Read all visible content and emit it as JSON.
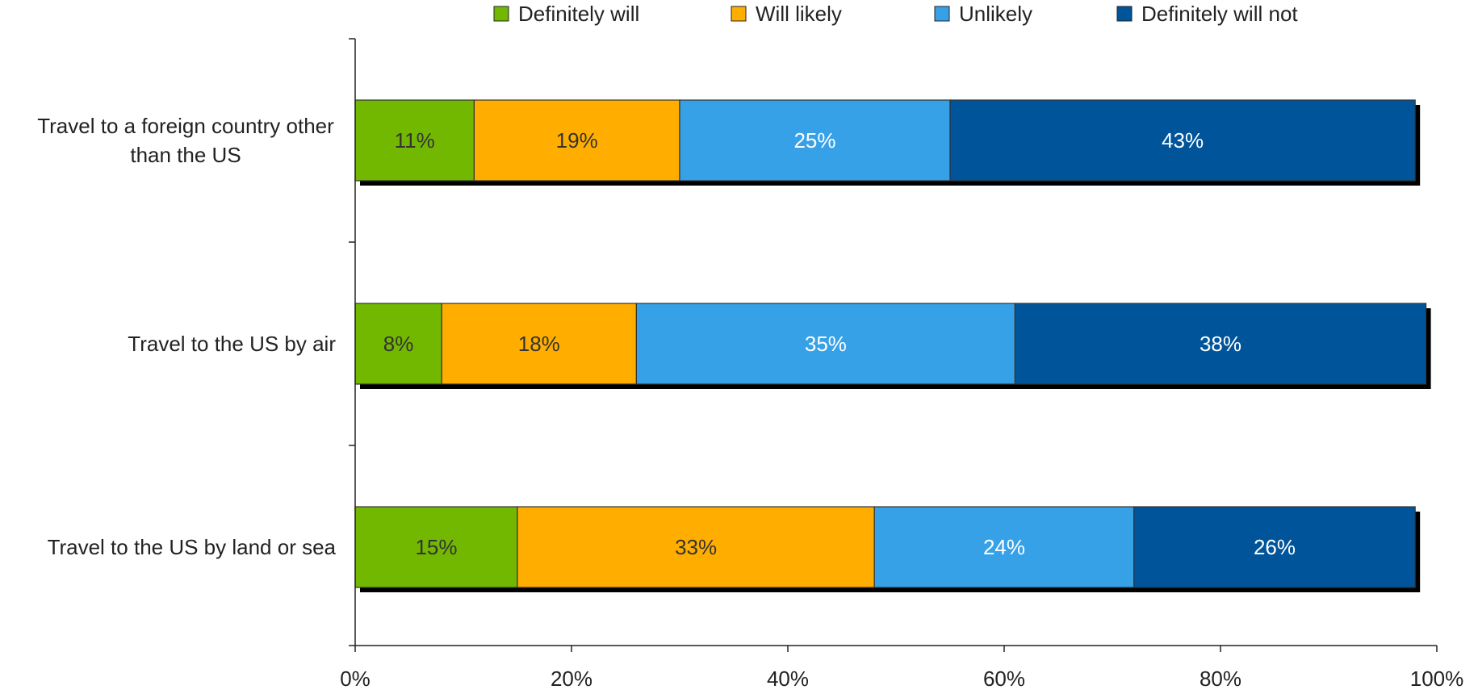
{
  "chart_data": {
    "type": "bar",
    "orientation": "horizontal",
    "stacked": true,
    "categories": [
      [
        "Travel to a foreign country other",
        "than the US"
      ],
      [
        "Travel to the US by air"
      ],
      [
        "Travel to the US by land or sea"
      ]
    ],
    "series": [
      {
        "name": "Definitely will",
        "color": "#72b800",
        "label_color": "#333333",
        "values": [
          11,
          8,
          15
        ]
      },
      {
        "name": "Will likely",
        "color": "#ffae00",
        "label_color": "#333333",
        "values": [
          19,
          18,
          33
        ]
      },
      {
        "name": "Unlikely",
        "color": "#37a1e8",
        "label_color": "#ffffff",
        "values": [
          25,
          35,
          24
        ]
      },
      {
        "name": "Definitely will not",
        "color": "#00559a",
        "label_color": "#ffffff",
        "values": [
          43,
          38,
          26
        ]
      }
    ],
    "value_suffix": "%",
    "xlim": [
      0,
      100
    ],
    "xticks": [
      0,
      20,
      40,
      60,
      80,
      100
    ],
    "xtick_labels": [
      "0%",
      "20%",
      "40%",
      "60%",
      "80%",
      "100%"
    ],
    "legend_position": "top",
    "grid": false,
    "bar_shadow": true
  }
}
